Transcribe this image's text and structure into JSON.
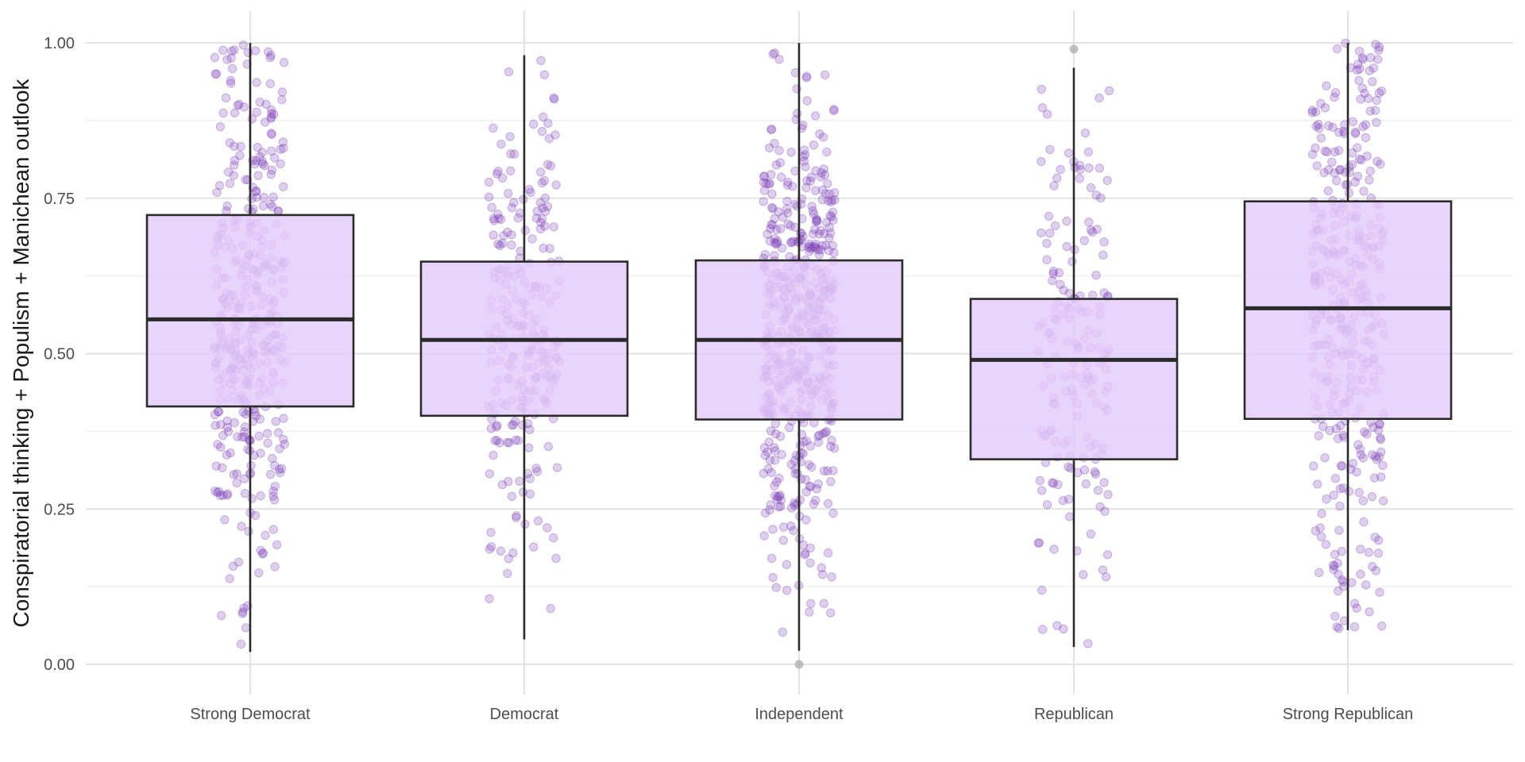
{
  "chart_data": {
    "type": "box",
    "title": "",
    "xlabel": "",
    "ylabel": "Conspiratorial thinking + Populism + Manichean outlook",
    "ylim": [
      -0.05,
      1.05
    ],
    "yticks": [
      0.0,
      0.25,
      0.5,
      0.75,
      1.0
    ],
    "ytick_labels": [
      "0.00",
      "0.25",
      "0.50",
      "0.75",
      "1.00"
    ],
    "grid": true,
    "legend": "none",
    "categories": [
      "Strong Democrat",
      "Democrat",
      "Independent",
      "Republican",
      "Strong Republican"
    ],
    "boxes": [
      {
        "category": "Strong Democrat",
        "whisker_low": 0.02,
        "q1": 0.415,
        "median": 0.555,
        "q3": 0.723,
        "whisker_high": 1.0,
        "n_points": 380
      },
      {
        "category": "Democrat",
        "whisker_low": 0.04,
        "q1": 0.4,
        "median": 0.522,
        "q3": 0.648,
        "whisker_high": 0.98,
        "n_points": 240
      },
      {
        "category": "Independent",
        "whisker_low": 0.022,
        "q1": 0.394,
        "median": 0.522,
        "q3": 0.65,
        "whisker_high": 1.0,
        "n_points": 520
      },
      {
        "category": "Republican",
        "whisker_low": 0.028,
        "q1": 0.33,
        "median": 0.49,
        "q3": 0.588,
        "whisker_high": 0.96,
        "n_points": 170
      },
      {
        "category": "Strong Republican",
        "whisker_low": 0.055,
        "q1": 0.395,
        "median": 0.573,
        "q3": 0.745,
        "whisker_high": 1.0,
        "n_points": 360
      }
    ],
    "outliers": [
      {
        "category": "Independent",
        "value": 0.0
      },
      {
        "category": "Republican",
        "value": 0.99
      }
    ],
    "colors": {
      "box_fill": "#e4cbfb",
      "box_stroke": "#2b2b2b",
      "point": "#7b3fb8",
      "outlier": "#9a9a9a"
    }
  }
}
